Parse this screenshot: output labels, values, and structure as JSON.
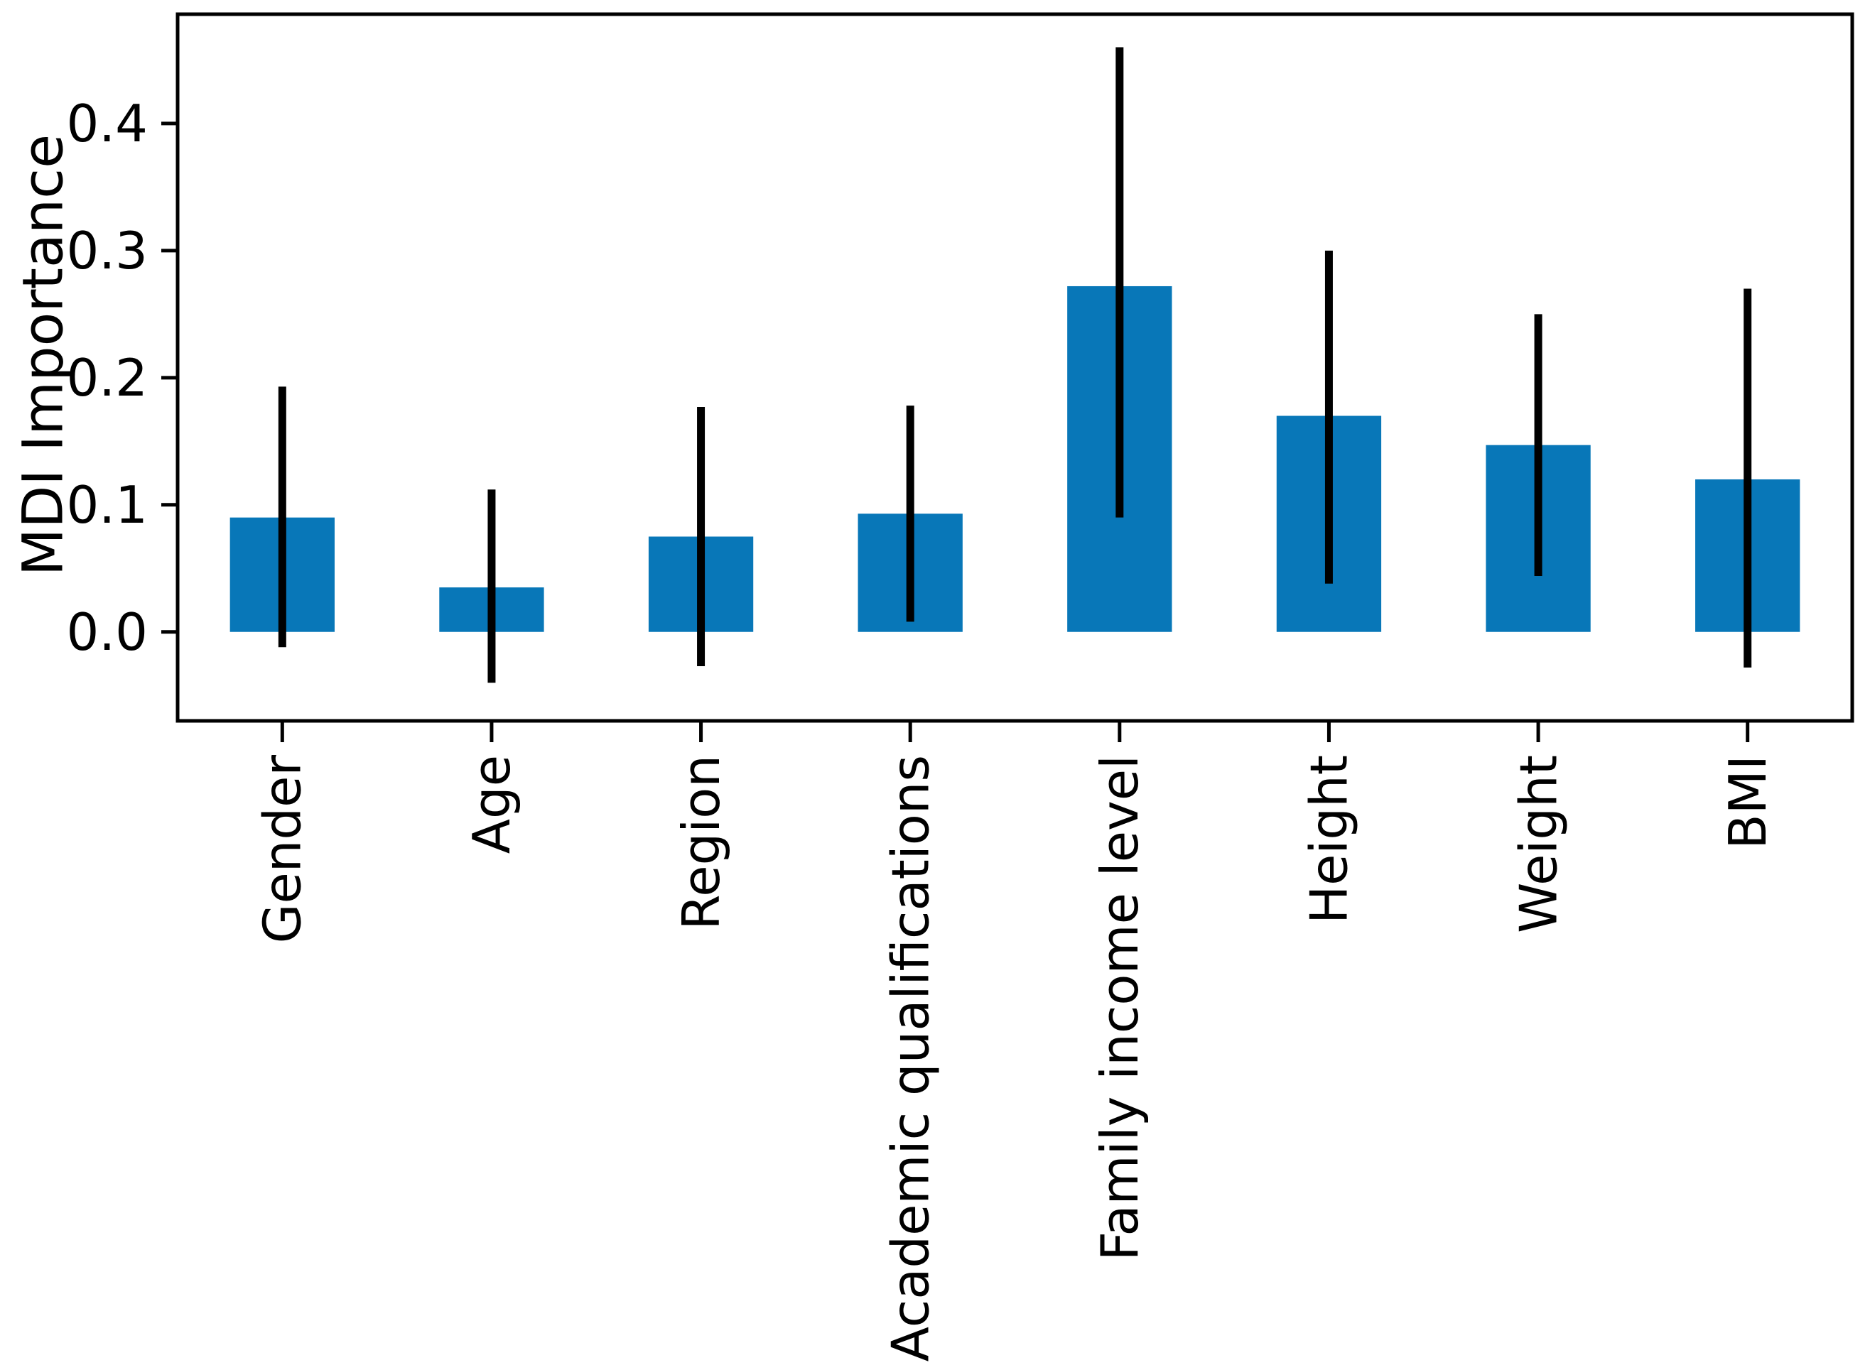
{
  "chart_data": {
    "type": "bar",
    "title": "",
    "xlabel": "",
    "ylabel": "MDI Importance",
    "categories": [
      "Gender",
      "Age",
      "Region",
      "Academic qualifications",
      "Family income level",
      "Height",
      "Weight",
      "BMI"
    ],
    "values": [
      0.09,
      0.035,
      0.075,
      0.093,
      0.272,
      0.17,
      0.147,
      0.12
    ],
    "error_low": [
      -0.012,
      -0.04,
      -0.027,
      0.008,
      0.09,
      0.038,
      0.044,
      -0.028
    ],
    "error_high": [
      0.193,
      0.112,
      0.177,
      0.178,
      0.46,
      0.3,
      0.25,
      0.27
    ],
    "yticks": [
      0.0,
      0.1,
      0.2,
      0.3,
      0.4
    ],
    "ytick_labels": [
      "0.0",
      "0.1",
      "0.2",
      "0.3",
      "0.4"
    ],
    "ylim": [
      -0.07,
      0.486
    ],
    "xtick_rotation": 90,
    "grid": false,
    "legend": null,
    "bar_color": "#0877b8",
    "error_bar_color": "#000000",
    "axis_color": "#000000",
    "background_color": "#ffffff",
    "bar_width_fraction": 0.5
  }
}
